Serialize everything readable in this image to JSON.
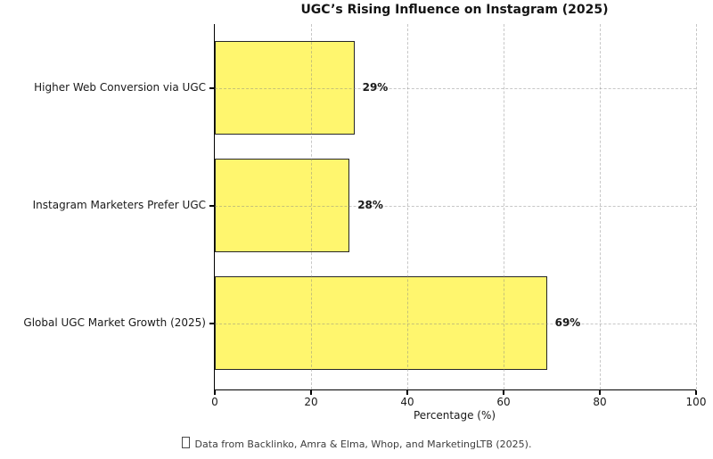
{
  "chart_data": {
    "type": "bar",
    "orientation": "horizontal",
    "title": "UGC’s Rising Influence on Instagram (2025)",
    "categories": [
      "Higher Web Conversion via UGC",
      "Instagram Marketers Prefer UGC",
      "Global UGC Market Growth (2025)"
    ],
    "values": [
      29,
      28,
      69
    ],
    "value_labels": [
      "29%",
      "28%",
      "69%"
    ],
    "xlabel": "Percentage (%)",
    "ylabel": "",
    "xlim": [
      0,
      100
    ],
    "xticks": [
      0,
      20,
      40,
      60,
      80,
      100
    ],
    "grid": "dashed light-gray gridlines on both axes, drawn over bars",
    "legend_position": "none",
    "colors": {
      "bar_fill": "#FFF66E",
      "bar_edge": "#262626",
      "spine": "#000000",
      "gridline": "#d4d4d4",
      "text": "#1a1a1a"
    }
  },
  "footnote": {
    "icon": "missing-glyph-box",
    "text": "Data from Backlinko, Amra & Elma, Whop, and MarketingLTB (2025)."
  }
}
